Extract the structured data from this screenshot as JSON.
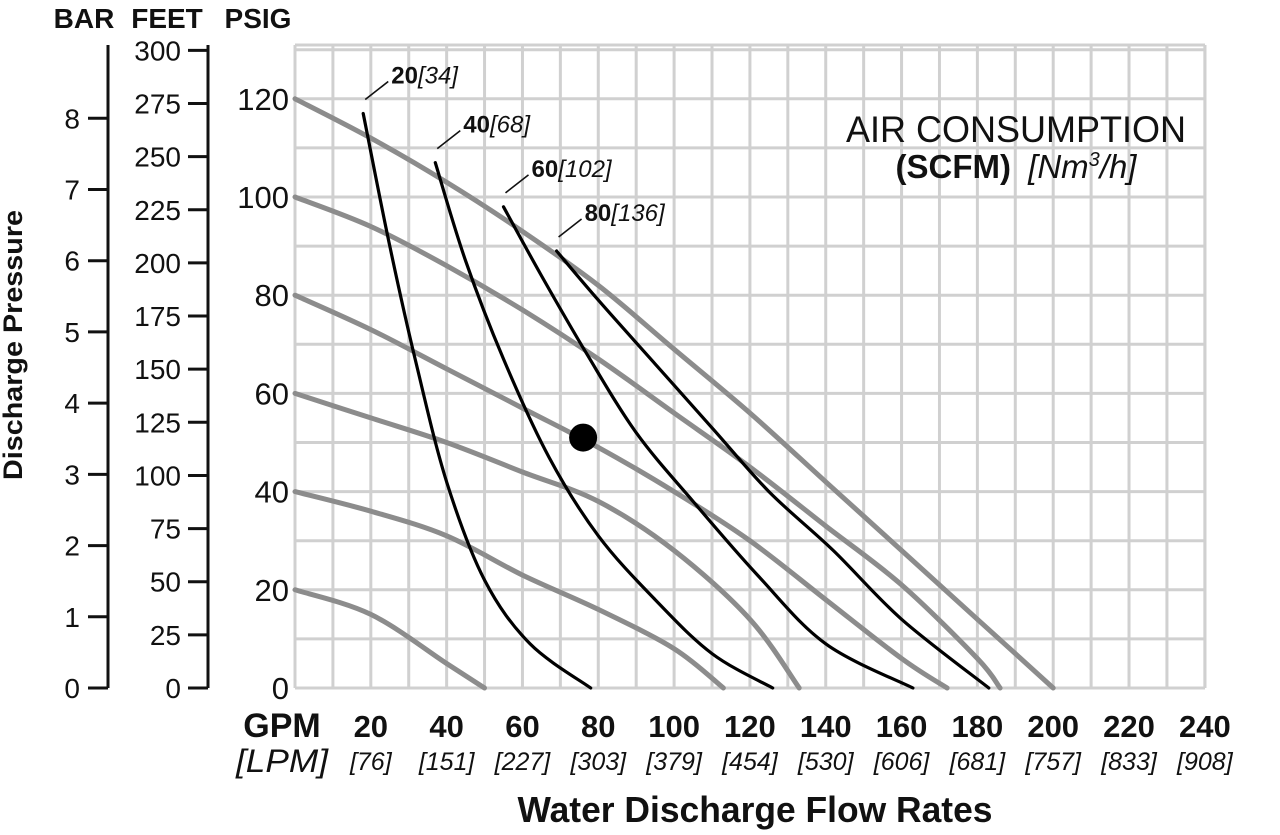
{
  "chart_data": {
    "type": "line",
    "title": "",
    "annotation": {
      "line1": "AIR CONSUMPTION",
      "unit_bold": "(SCFM)",
      "unit_italic_pre": "[Nm",
      "unit_sup": "3",
      "unit_italic_post": "/h]"
    },
    "xlabel": "Water Discharge Flow Rates",
    "x_unit_primary": "GPM",
    "x_unit_secondary": "[LPM]",
    "xlim": [
      0,
      240
    ],
    "x_ticks": [
      20,
      40,
      60,
      80,
      100,
      120,
      140,
      160,
      180,
      200,
      220,
      240
    ],
    "x_ticks_secondary": [
      "[76]",
      "[151]",
      "[227]",
      "[303]",
      "[379]",
      "[454]",
      "[530]",
      "[606]",
      "[681]",
      "[757]",
      "[833]",
      "[908]"
    ],
    "ylabel": "Discharge Pressure",
    "ylim": [
      0,
      130
    ],
    "y_psig_header": "PSIG",
    "y_psig_ticks": [
      0,
      20,
      40,
      60,
      80,
      100,
      120
    ],
    "y_feet_header": "FEET",
    "y_feet_ticks": [
      0,
      25,
      50,
      75,
      100,
      125,
      150,
      175,
      200,
      225,
      250,
      275,
      300
    ],
    "y_bar_header": "BAR",
    "y_bar_ticks": [
      0,
      1,
      2,
      3,
      4,
      5,
      6,
      7,
      8
    ],
    "grid": true,
    "colors": {
      "pressure_curve": "#8c8c8c",
      "air_curve": "#000000",
      "grid": "#d0d0d0"
    },
    "pressure_curves": [
      {
        "points": [
          [
            0,
            20
          ],
          [
            20,
            15
          ],
          [
            40,
            5
          ],
          [
            50,
            0
          ]
        ]
      },
      {
        "points": [
          [
            0,
            40
          ],
          [
            20,
            36
          ],
          [
            40,
            31
          ],
          [
            60,
            23
          ],
          [
            80,
            16
          ],
          [
            100,
            8
          ],
          [
            113,
            0
          ]
        ]
      },
      {
        "points": [
          [
            0,
            60
          ],
          [
            20,
            55
          ],
          [
            40,
            50
          ],
          [
            60,
            44
          ],
          [
            80,
            38
          ],
          [
            100,
            28
          ],
          [
            120,
            14
          ],
          [
            133,
            0
          ]
        ]
      },
      {
        "points": [
          [
            0,
            80
          ],
          [
            20,
            73
          ],
          [
            40,
            65
          ],
          [
            60,
            57
          ],
          [
            80,
            49
          ],
          [
            100,
            40
          ],
          [
            120,
            30
          ],
          [
            140,
            18
          ],
          [
            160,
            6
          ],
          [
            172,
            0
          ]
        ]
      },
      {
        "points": [
          [
            0,
            100
          ],
          [
            20,
            94
          ],
          [
            40,
            86
          ],
          [
            60,
            77
          ],
          [
            80,
            67
          ],
          [
            100,
            56
          ],
          [
            120,
            45
          ],
          [
            140,
            33
          ],
          [
            160,
            21
          ],
          [
            180,
            6
          ],
          [
            186,
            0
          ]
        ]
      },
      {
        "points": [
          [
            0,
            120
          ],
          [
            20,
            112
          ],
          [
            40,
            103
          ],
          [
            60,
            93
          ],
          [
            80,
            82
          ],
          [
            100,
            69
          ],
          [
            120,
            56
          ],
          [
            140,
            42
          ],
          [
            160,
            28
          ],
          [
            180,
            14
          ],
          [
            200,
            0
          ]
        ]
      }
    ],
    "air_curves": [
      {
        "label": "20",
        "label_metric": "[34]",
        "points": [
          [
            18,
            117
          ],
          [
            25,
            90
          ],
          [
            32,
            66
          ],
          [
            40,
            42
          ],
          [
            50,
            22
          ],
          [
            62,
            9
          ],
          [
            78,
            0
          ]
        ]
      },
      {
        "label": "40",
        "label_metric": "[68]",
        "points": [
          [
            37,
            107
          ],
          [
            45,
            87
          ],
          [
            55,
            67
          ],
          [
            67,
            47
          ],
          [
            80,
            31
          ],
          [
            95,
            18
          ],
          [
            110,
            7
          ],
          [
            126,
            0
          ]
        ]
      },
      {
        "label": "60",
        "label_metric": "[102]",
        "points": [
          [
            55,
            98
          ],
          [
            65,
            84
          ],
          [
            77,
            68
          ],
          [
            90,
            52
          ],
          [
            105,
            38
          ],
          [
            122,
            23
          ],
          [
            140,
            9
          ],
          [
            163,
            0
          ]
        ]
      },
      {
        "label": "80",
        "label_metric": "[136]",
        "points": [
          [
            69,
            89
          ],
          [
            80,
            79
          ],
          [
            95,
            66
          ],
          [
            110,
            53
          ],
          [
            125,
            40
          ],
          [
            142,
            28
          ],
          [
            160,
            14
          ],
          [
            183,
            0
          ]
        ]
      }
    ],
    "operating_point": {
      "x": 76,
      "y": 51
    }
  }
}
